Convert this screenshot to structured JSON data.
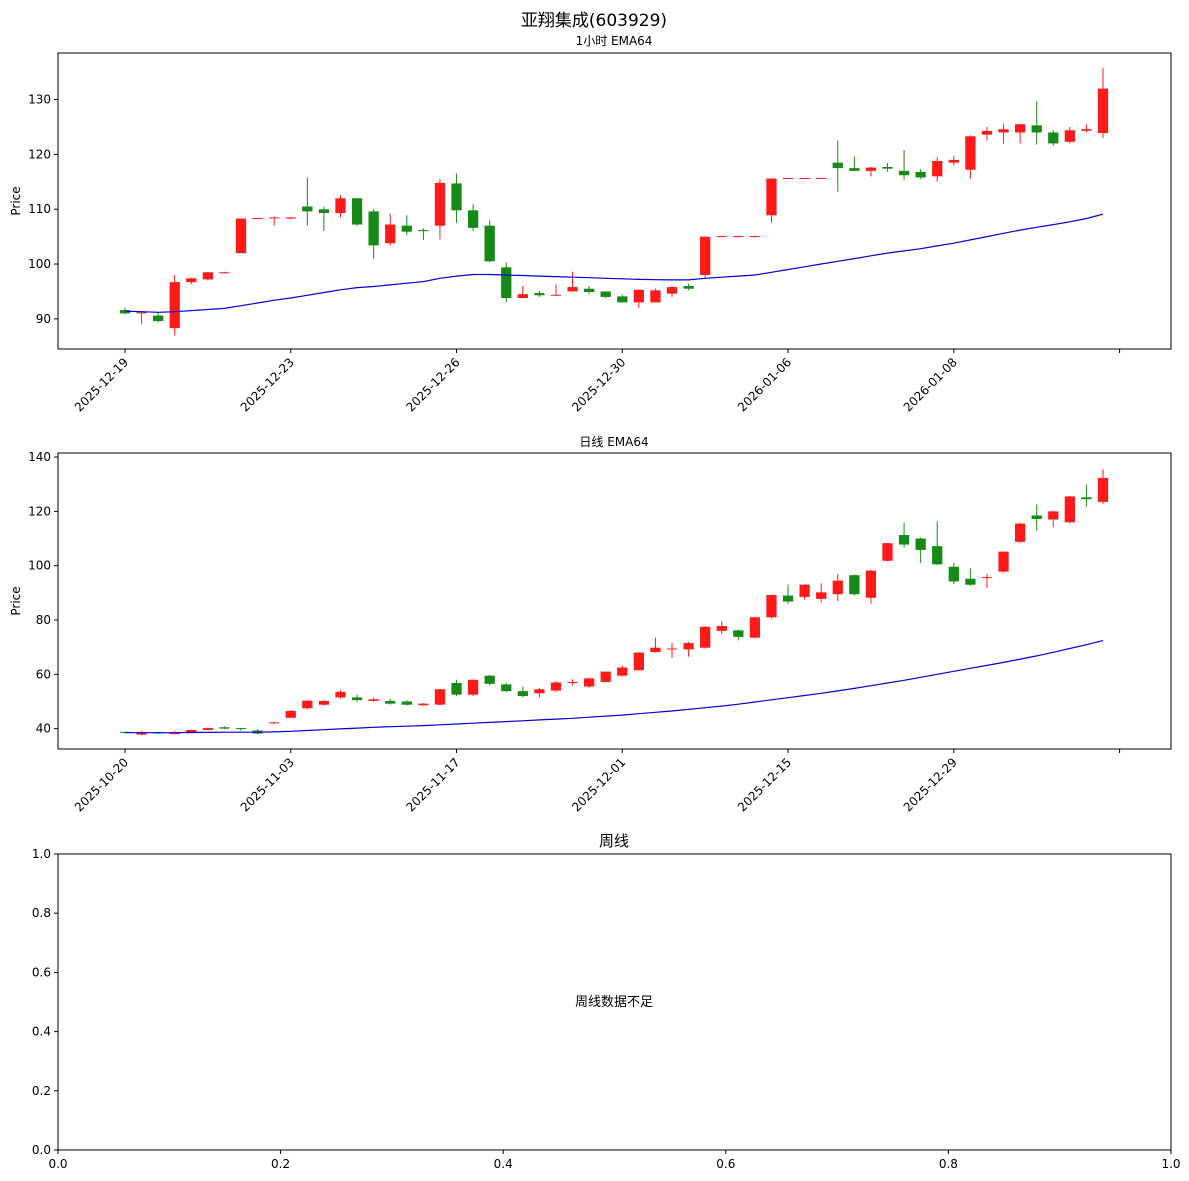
{
  "figure": {
    "title": "亚翔集成(603929)"
  },
  "colors": {
    "up": "#ff1a1a",
    "down": "#168a16",
    "ema": "#0000dd",
    "axis": "#000000"
  },
  "chart_data": [
    {
      "id": "hourly",
      "type": "candlestick",
      "title": "1小时 EMA64",
      "ylabel": "Price",
      "ylim": [
        84.5,
        138.5
      ],
      "yticks": [
        90,
        100,
        110,
        120,
        130
      ],
      "xticks": [
        {
          "index": 0,
          "label": "2025-12-19"
        },
        {
          "index": 10,
          "label": "2025-12-23"
        },
        {
          "index": 20,
          "label": "2025-12-26"
        },
        {
          "index": 30,
          "label": "2025-12-30"
        },
        {
          "index": 40,
          "label": "2026-01-06"
        },
        {
          "index": 50,
          "label": "2026-01-08"
        },
        {
          "index": 60,
          "label": ""
        }
      ],
      "candles": [
        [
          91.6,
          91.0,
          92.0,
          90.8
        ],
        [
          91.0,
          91.2,
          91.4,
          89.0
        ],
        [
          90.6,
          89.6,
          91.2,
          89.3
        ],
        [
          88.3,
          96.7,
          98.0,
          87.0
        ],
        [
          96.7,
          97.4,
          97.5,
          96.3
        ],
        [
          97.2,
          98.5,
          98.5,
          97.0
        ],
        [
          98.4,
          98.5,
          98.6,
          98.3
        ],
        [
          102.0,
          108.3,
          108.3,
          102.0
        ],
        [
          108.3,
          108.4,
          108.4,
          108.2
        ],
        [
          108.4,
          108.5,
          108.6,
          107.0
        ],
        [
          108.3,
          108.5,
          108.6,
          108.2
        ],
        [
          110.5,
          109.6,
          115.8,
          107.0
        ],
        [
          110.0,
          109.3,
          110.5,
          106.0
        ],
        [
          109.3,
          112.0,
          112.6,
          108.5
        ],
        [
          112.0,
          107.2,
          112.0,
          107.0
        ],
        [
          109.6,
          103.4,
          110.0,
          101.0
        ],
        [
          103.8,
          107.2,
          109.2,
          103.4
        ],
        [
          107.0,
          105.9,
          108.9,
          105.3
        ],
        [
          106.2,
          106.0,
          106.5,
          104.4
        ],
        [
          107.0,
          114.8,
          115.5,
          104.5
        ],
        [
          114.7,
          109.8,
          116.5,
          107.5
        ],
        [
          109.8,
          106.6,
          110.9,
          106.0
        ],
        [
          107.0,
          100.5,
          108.0,
          100.3
        ],
        [
          99.4,
          93.8,
          100.3,
          93.0
        ],
        [
          93.8,
          94.5,
          96.0,
          93.8
        ],
        [
          94.7,
          94.3,
          95.1,
          94.0
        ],
        [
          94.3,
          94.4,
          96.3,
          94.2
        ],
        [
          95.0,
          95.8,
          98.6,
          95.0
        ],
        [
          95.5,
          94.9,
          96.0,
          94.6
        ],
        [
          95.0,
          94.0,
          95.0,
          93.8
        ],
        [
          94.1,
          93.0,
          94.4,
          93.0
        ],
        [
          93.0,
          95.3,
          95.4,
          92.0
        ],
        [
          93.0,
          95.2,
          95.5,
          93.0
        ],
        [
          94.6,
          95.8,
          96.0,
          94.0
        ],
        [
          96.0,
          95.5,
          96.4,
          95.2
        ],
        [
          98.0,
          105.0,
          105.0,
          97.5
        ],
        [
          105.0,
          105.1,
          105.2,
          104.9
        ],
        [
          105.0,
          105.1,
          105.2,
          104.9
        ],
        [
          105.0,
          105.1,
          105.2,
          104.9
        ],
        [
          108.9,
          115.6,
          115.6,
          107.5
        ],
        [
          115.6,
          115.7,
          115.7,
          115.5
        ],
        [
          115.6,
          115.7,
          115.7,
          115.5
        ],
        [
          115.6,
          115.7,
          115.7,
          115.5
        ],
        [
          118.5,
          117.5,
          122.5,
          113.2
        ],
        [
          117.5,
          117.0,
          119.6,
          117.0
        ],
        [
          117.0,
          117.6,
          117.7,
          116.0
        ],
        [
          117.7,
          117.4,
          118.4,
          116.9
        ],
        [
          117.0,
          116.2,
          120.8,
          115.4
        ],
        [
          116.8,
          115.8,
          117.3,
          115.5
        ],
        [
          116.0,
          118.8,
          119.5,
          115.0
        ],
        [
          118.5,
          119.0,
          119.7,
          118.0
        ],
        [
          117.2,
          123.3,
          123.5,
          115.5
        ],
        [
          123.6,
          124.3,
          125.0,
          122.5
        ],
        [
          124.0,
          124.6,
          125.6,
          122.0
        ],
        [
          124.0,
          125.5,
          125.6,
          122.0
        ],
        [
          125.3,
          124.0,
          129.7,
          121.8
        ],
        [
          124.0,
          122.0,
          124.4,
          121.6
        ],
        [
          122.3,
          124.4,
          125.0,
          122.0
        ],
        [
          124.3,
          124.6,
          125.5,
          124.0
        ],
        [
          123.9,
          132.0,
          135.8,
          123.0
        ]
      ],
      "ema": [
        91.4,
        91.3,
        91.2,
        91.3,
        91.5,
        91.7,
        91.9,
        92.4,
        92.9,
        93.4,
        93.8,
        94.3,
        94.8,
        95.3,
        95.7,
        95.9,
        96.2,
        96.5,
        96.8,
        97.4,
        97.8,
        98.1,
        98.1,
        98.0,
        97.9,
        97.8,
        97.7,
        97.6,
        97.5,
        97.4,
        97.3,
        97.2,
        97.15,
        97.1,
        97.1,
        97.4,
        97.6,
        97.8,
        98.0,
        98.5,
        99.0,
        99.5,
        100.0,
        100.5,
        101.0,
        101.5,
        102.0,
        102.4,
        102.8,
        103.3,
        103.8,
        104.4,
        105.0,
        105.6,
        106.2,
        106.7,
        107.2,
        107.7,
        108.3,
        109.1
      ]
    },
    {
      "id": "daily",
      "type": "candlestick",
      "title": "日线 EMA64",
      "ylabel": "Price",
      "ylim": [
        32.5,
        141.5
      ],
      "yticks": [
        40,
        60,
        80,
        100,
        120,
        140
      ],
      "xticks": [
        {
          "index": 0,
          "label": "2025-10-20"
        },
        {
          "index": 10,
          "label": "2025-11-03"
        },
        {
          "index": 20,
          "label": "2025-11-17"
        },
        {
          "index": 30,
          "label": "2025-12-01"
        },
        {
          "index": 40,
          "label": "2025-12-15"
        },
        {
          "index": 50,
          "label": "2025-12-29"
        },
        {
          "index": 60,
          "label": ""
        }
      ],
      "candles": [
        [
          38.8,
          38.5,
          39.0,
          38.3
        ],
        [
          37.8,
          38.8,
          39.2,
          37.6
        ],
        [
          38.6,
          38.2,
          38.8,
          38.0
        ],
        [
          38.0,
          38.7,
          39.2,
          37.9
        ],
        [
          38.3,
          39.5,
          39.7,
          38.2
        ],
        [
          39.5,
          40.2,
          40.4,
          39.3
        ],
        [
          40.5,
          40.0,
          40.8,
          39.8
        ],
        [
          40.2,
          39.9,
          40.3,
          39.2
        ],
        [
          39.3,
          38.2,
          39.8,
          38.0
        ],
        [
          42.0,
          42.3,
          42.4,
          41.8
        ],
        [
          44.0,
          46.5,
          46.8,
          43.8
        ],
        [
          47.5,
          50.3,
          50.5,
          47.0
        ],
        [
          48.8,
          50.2,
          50.5,
          48.5
        ],
        [
          51.5,
          53.5,
          54.2,
          51.0
        ],
        [
          51.5,
          50.5,
          52.5,
          50.0
        ],
        [
          50.2,
          50.8,
          51.5,
          50.0
        ],
        [
          50.2,
          49.2,
          51.0,
          48.8
        ],
        [
          50.0,
          48.8,
          50.5,
          48.5
        ],
        [
          48.6,
          49.2,
          49.4,
          48.5
        ],
        [
          48.8,
          54.5,
          54.6,
          48.7
        ],
        [
          56.8,
          52.5,
          58.0,
          52.0
        ],
        [
          52.5,
          58.0,
          58.0,
          52.0
        ],
        [
          59.5,
          56.5,
          59.8,
          56.0
        ],
        [
          56.3,
          53.8,
          57.0,
          53.5
        ],
        [
          53.8,
          52.0,
          55.5,
          51.5
        ],
        [
          53.0,
          54.5,
          55.0,
          51.5
        ],
        [
          54.0,
          57.0,
          57.5,
          53.5
        ],
        [
          56.8,
          57.2,
          58.2,
          55.8
        ],
        [
          55.5,
          58.5,
          58.8,
          55.0
        ],
        [
          57.2,
          61.0,
          61.0,
          57.0
        ],
        [
          59.5,
          62.5,
          63.2,
          59.2
        ],
        [
          61.5,
          68.0,
          68.2,
          61.5
        ],
        [
          68.2,
          69.8,
          73.5,
          68.0
        ],
        [
          69.2,
          69.5,
          71.5,
          66.0
        ],
        [
          69.2,
          71.5,
          72.0,
          66.5
        ],
        [
          69.8,
          77.5,
          77.8,
          69.5
        ],
        [
          76.0,
          77.8,
          79.5,
          74.8
        ],
        [
          76.2,
          73.8,
          76.5,
          72.5
        ],
        [
          73.5,
          81.0,
          81.2,
          73.2
        ],
        [
          81.0,
          89.2,
          89.3,
          80.5
        ],
        [
          89.0,
          86.8,
          93.0,
          86.0
        ],
        [
          88.5,
          93.0,
          93.2,
          87.5
        ],
        [
          87.8,
          90.2,
          93.5,
          86.5
        ],
        [
          89.5,
          94.5,
          97.0,
          87.0
        ],
        [
          96.5,
          89.5,
          96.8,
          89.0
        ],
        [
          88.2,
          98.2,
          98.4,
          86.0
        ],
        [
          101.8,
          108.3,
          108.4,
          101.6
        ],
        [
          111.3,
          107.8,
          115.8,
          106.8
        ],
        [
          110.0,
          105.8,
          110.3,
          101.0
        ],
        [
          107.2,
          100.5,
          116.3,
          100.3
        ],
        [
          99.6,
          94.2,
          101.0,
          93.2
        ],
        [
          95.2,
          93.0,
          99.0,
          92.5
        ],
        [
          95.5,
          95.8,
          97.0,
          91.8
        ],
        [
          97.8,
          105.2,
          105.2,
          97.5
        ],
        [
          108.8,
          115.5,
          115.8,
          108.4
        ],
        [
          118.5,
          117.2,
          122.5,
          113.0
        ],
        [
          117.0,
          120.0,
          120.2,
          114.2
        ],
        [
          116.0,
          125.5,
          125.6,
          115.5
        ],
        [
          125.2,
          124.5,
          129.8,
          121.8
        ],
        [
          123.5,
          132.3,
          135.5,
          122.8
        ]
      ],
      "ema": [
        38.5,
        38.5,
        38.5,
        38.5,
        38.6,
        38.6,
        38.7,
        38.7,
        38.7,
        38.8,
        39.0,
        39.3,
        39.6,
        39.9,
        40.2,
        40.5,
        40.7,
        40.9,
        41.1,
        41.4,
        41.7,
        42.0,
        42.3,
        42.6,
        42.9,
        43.2,
        43.5,
        43.8,
        44.2,
        44.6,
        45.0,
        45.5,
        46.0,
        46.5,
        47.1,
        47.7,
        48.3,
        49.0,
        49.8,
        50.6,
        51.4,
        52.2,
        53.0,
        53.9,
        54.8,
        55.8,
        56.8,
        57.8,
        58.9,
        60.0,
        61.1,
        62.2,
        63.3,
        64.4,
        65.6,
        66.8,
        68.1,
        69.5,
        70.9,
        72.4
      ]
    },
    {
      "id": "weekly",
      "type": "empty",
      "title": "周线",
      "message": "周线数据不足",
      "xlim": [
        0,
        1
      ],
      "ylim": [
        0,
        1
      ],
      "xticks": [
        "0.0",
        "0.2",
        "0.4",
        "0.6",
        "0.8",
        "1.0"
      ],
      "yticks": [
        "0.0",
        "0.2",
        "0.4",
        "0.6",
        "0.8",
        "1.0"
      ]
    }
  ]
}
